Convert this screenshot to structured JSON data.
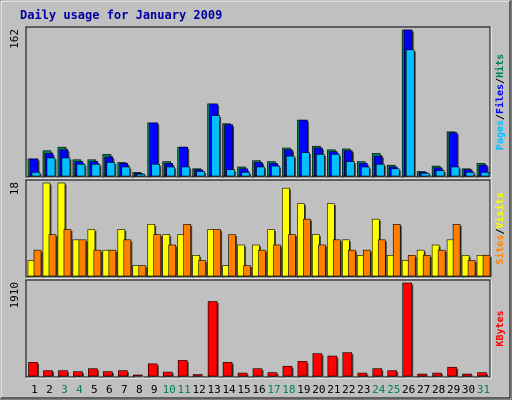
{
  "chart_data": {
    "type": "bar",
    "title": "Daily usage for January 2009",
    "categories": [
      "1",
      "2",
      "3",
      "4",
      "5",
      "6",
      "7",
      "8",
      "9",
      "10",
      "11",
      "12",
      "13",
      "14",
      "15",
      "16",
      "17",
      "18",
      "19",
      "20",
      "21",
      "22",
      "23",
      "24",
      "25",
      "26",
      "27",
      "28",
      "29",
      "30",
      "31"
    ],
    "weekend_days": [
      "3",
      "4",
      "10",
      "11",
      "17",
      "18",
      "24",
      "25",
      "31"
    ],
    "colors": {
      "hits": "#00805c",
      "files": "#0000ff",
      "pages": "#00c0ff",
      "visits": "#ffff00",
      "sites": "#ff8000",
      "kbytes": "#ff0000",
      "title": "#0000a0",
      "weekday_label": "#000000",
      "weekend_label": "#00805c",
      "plot_background": "#c0c0c0"
    },
    "panels": [
      {
        "id": "top",
        "ymax": 162,
        "ymax_label": "162",
        "legend": [
          {
            "label": "Pages",
            "color": "#00c0ff"
          },
          {
            "label": "Files",
            "color": "#0000ff"
          },
          {
            "label": "Hits",
            "color": "#00805c"
          }
        ],
        "separator": "/",
        "series": [
          {
            "name": "Hits",
            "color": "#00805c",
            "values": [
              19,
              28,
              32,
              18,
              18,
              24,
              15,
              4,
              59,
              16,
              32,
              8,
              80,
              58,
              10,
              17,
              16,
              31,
              62,
              33,
              29,
              30,
              16,
              25,
              12,
              162,
              5,
              11,
              49,
              8,
              14
            ]
          },
          {
            "name": "Files",
            "color": "#0000ff",
            "values": [
              19,
              25,
              29,
              16,
              16,
              21,
              14,
              3,
              59,
              14,
              32,
              7,
              80,
              57,
              8,
              15,
              14,
              29,
              62,
              31,
              27,
              28,
              14,
              22,
              10,
              162,
              4,
              9,
              48,
              7,
              12
            ]
          },
          {
            "name": "Pages",
            "color": "#00c0ff",
            "values": [
              4,
              20,
              20,
              13,
              13,
              15,
              10,
              2,
              13,
              10,
              10,
              5,
              67,
              7,
              4,
              10,
              11,
              22,
              26,
              24,
              24,
              16,
              10,
              13,
              8,
              140,
              3,
              6,
              10,
              4,
              4
            ]
          }
        ]
      },
      {
        "id": "middle",
        "ymax": 18,
        "ymax_label": "18",
        "legend": [
          {
            "label": "Sites",
            "color": "#ff8000"
          },
          {
            "label": "Visits",
            "color": "#ffff00"
          }
        ],
        "separator": "/",
        "series": [
          {
            "name": "Visits",
            "color": "#ffff00",
            "values": [
              3,
              18,
              18,
              7,
              9,
              5,
              9,
              2,
              10,
              8,
              8,
              4,
              9,
              2,
              6,
              6,
              9,
              17,
              14,
              8,
              14,
              7,
              4,
              11,
              4,
              3,
              5,
              6,
              7,
              4,
              4
            ]
          },
          {
            "name": "Sites",
            "color": "#ff8000",
            "values": [
              5,
              8,
              9,
              7,
              5,
              5,
              7,
              2,
              8,
              6,
              10,
              3,
              9,
              8,
              2,
              5,
              6,
              8,
              11,
              6,
              7,
              5,
              5,
              7,
              10,
              4,
              4,
              5,
              10,
              3,
              4
            ]
          }
        ]
      },
      {
        "id": "bottom",
        "ymax": 1910,
        "ymax_label": "1910",
        "legend": [
          {
            "label": "KBytes",
            "color": "#ff0000"
          }
        ],
        "separator": "",
        "series": [
          {
            "name": "KBytes",
            "color": "#ff0000",
            "values": [
              280,
              110,
              110,
              90,
              150,
              90,
              110,
              20,
              250,
              80,
              320,
              30,
              1530,
              280,
              60,
              150,
              70,
              200,
              300,
              460,
              410,
              480,
              60,
              150,
              110,
              1910,
              40,
              60,
              180,
              40,
              70
            ]
          }
        ]
      }
    ]
  }
}
